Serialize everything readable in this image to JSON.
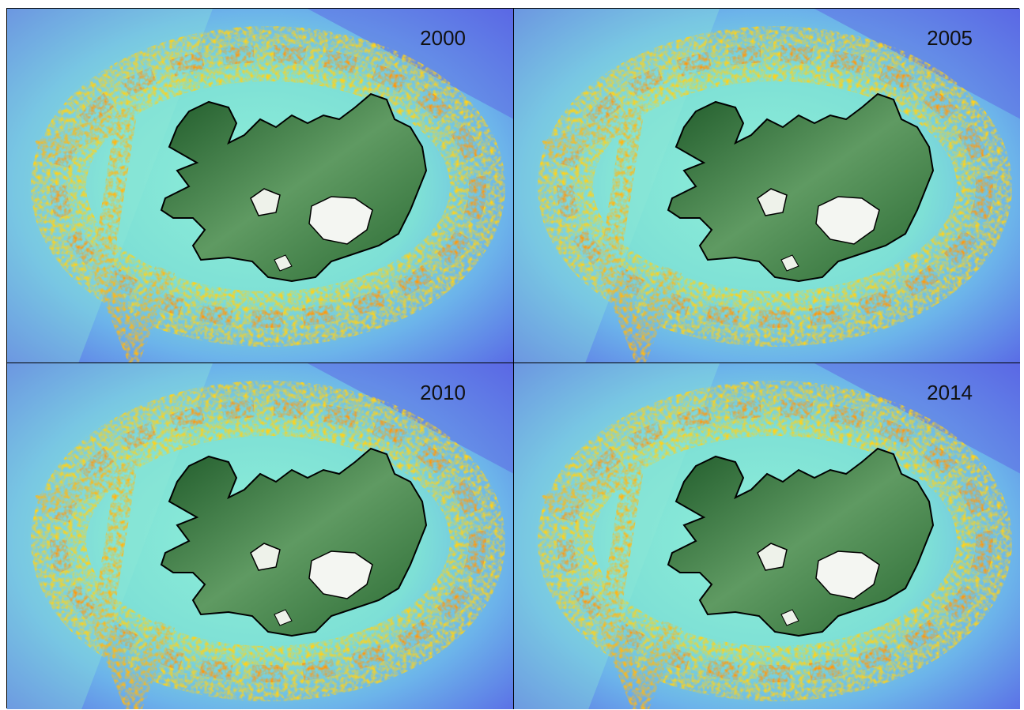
{
  "panels": [
    {
      "label": "2000"
    },
    {
      "label": "2005"
    },
    {
      "label": "2010"
    },
    {
      "label": "2014"
    }
  ]
}
